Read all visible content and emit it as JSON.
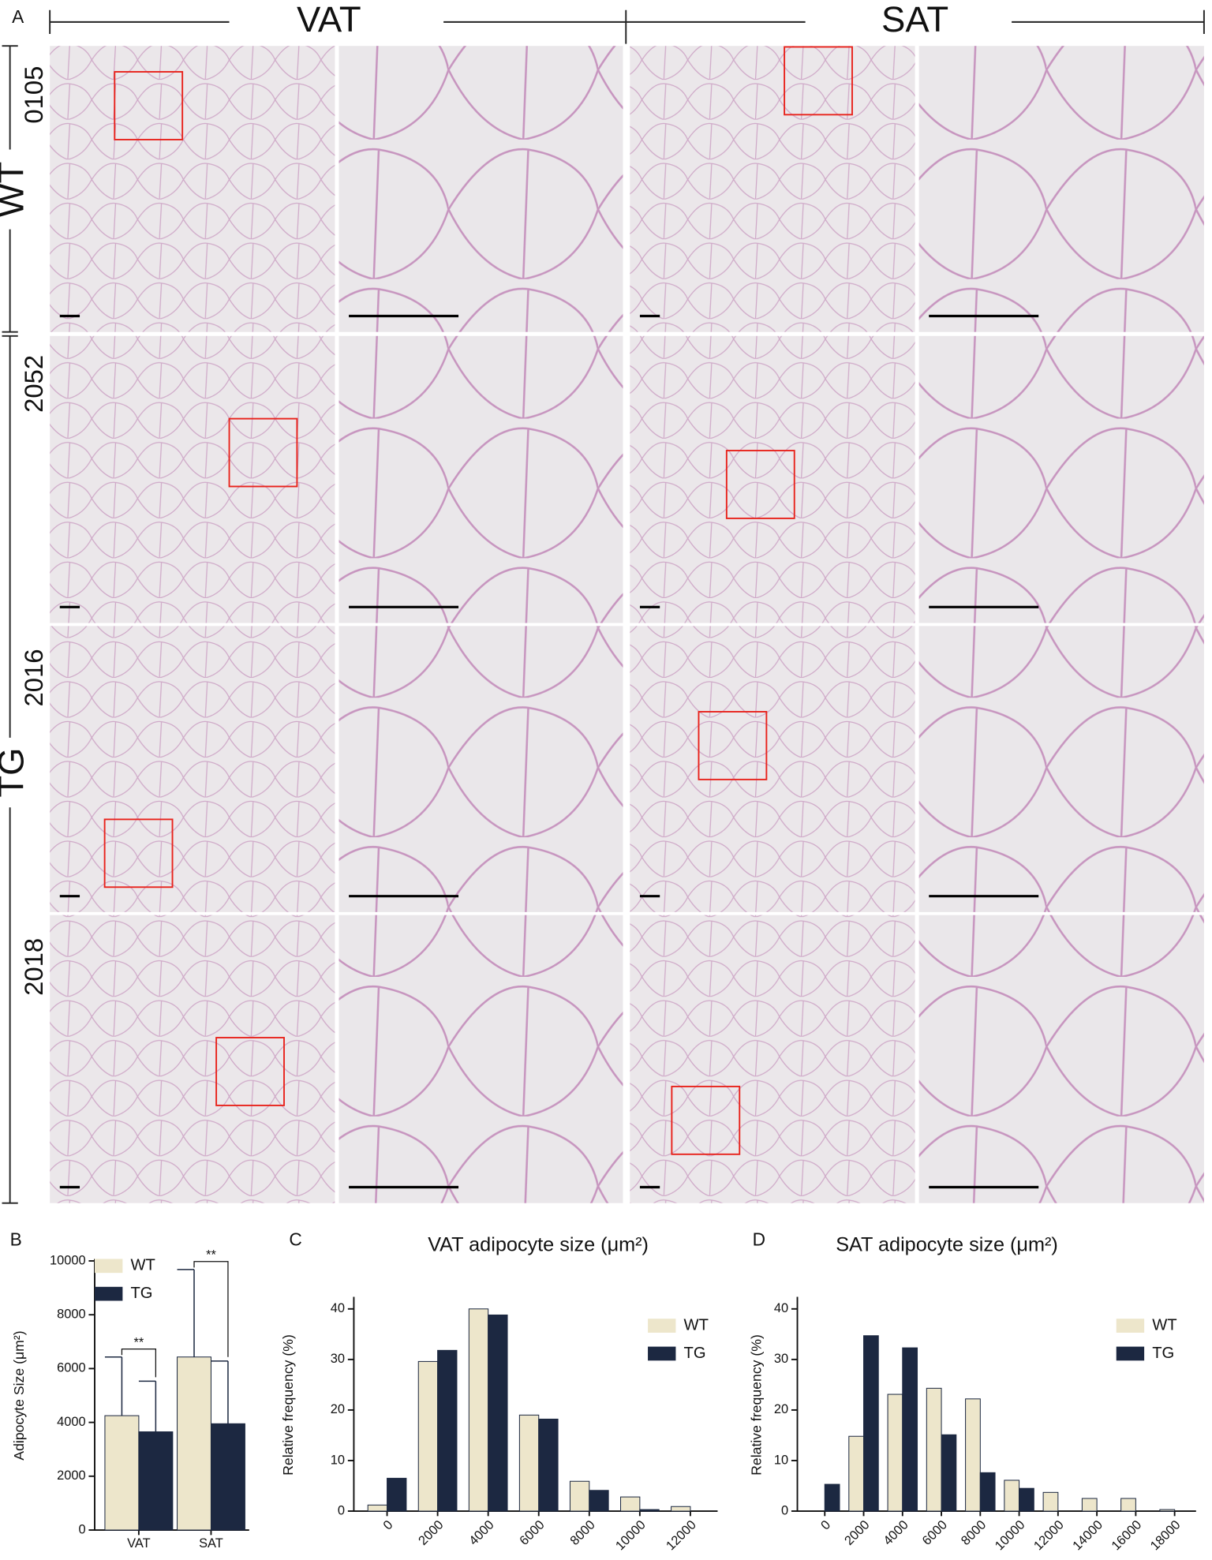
{
  "panel_a": {
    "label": "A",
    "columns": [
      "VAT",
      "SAT"
    ],
    "groups": [
      "WT",
      "TG"
    ],
    "rows": [
      "0105",
      "2052",
      "2016",
      "2018"
    ]
  },
  "chart_data": [
    {
      "type": "bar",
      "panel": "B",
      "y_label": "Adipocyte Size (μm²)",
      "categories": [
        "VAT",
        "SAT"
      ],
      "series": [
        {
          "name": "WT",
          "color": "#ede6cb",
          "values": [
            4250,
            6430
          ],
          "errors": [
            2180,
            3250
          ]
        },
        {
          "name": "TG",
          "color": "#1c2841",
          "values": [
            3650,
            3950
          ],
          "errors": [
            1880,
            2330
          ]
        }
      ],
      "annotations": [
        "**",
        "**"
      ],
      "ylim": [
        0,
        10000
      ],
      "yticks": [
        0,
        2000,
        4000,
        6000,
        8000,
        10000
      ],
      "legend": "top-left"
    },
    {
      "type": "bar",
      "panel": "C",
      "title": "VAT adipocyte size (μm²)",
      "y_label": "Relative frequency (%)",
      "categories": [
        "0",
        "2000",
        "4000",
        "6000",
        "8000",
        "10000",
        "12000"
      ],
      "series": [
        {
          "name": "WT",
          "color": "#ede6cb",
          "values": [
            1.2,
            29.6,
            40,
            19,
            5.9,
            2.8,
            0.9
          ]
        },
        {
          "name": "TG",
          "color": "#1c2841",
          "values": [
            6.5,
            31.8,
            38.8,
            18.2,
            4.1,
            0.3,
            0
          ]
        }
      ],
      "ylim": [
        0,
        42
      ],
      "yticks": [
        0,
        10,
        20,
        30,
        40
      ],
      "legend": "top-right"
    },
    {
      "type": "bar",
      "panel": "D",
      "title": "SAT adipocyte size (μm²)",
      "y_label": "Relative frequency (%)",
      "categories": [
        "0",
        "2000",
        "4000",
        "6000",
        "8000",
        "10000",
        "12000",
        "14000",
        "16000",
        "18000"
      ],
      "series": [
        {
          "name": "WT",
          "color": "#ede6cb",
          "values": [
            0,
            14.8,
            23.1,
            24.3,
            22.2,
            6.1,
            3.7,
            2.5,
            2.5,
            0.3
          ]
        },
        {
          "name": "TG",
          "color": "#1c2841",
          "values": [
            5.3,
            34.7,
            32.3,
            15.1,
            7.6,
            4.5,
            0,
            0,
            0,
            0
          ]
        }
      ],
      "ylim": [
        0,
        42
      ],
      "yticks": [
        0,
        10,
        20,
        30,
        40
      ],
      "legend": "top-right"
    }
  ]
}
